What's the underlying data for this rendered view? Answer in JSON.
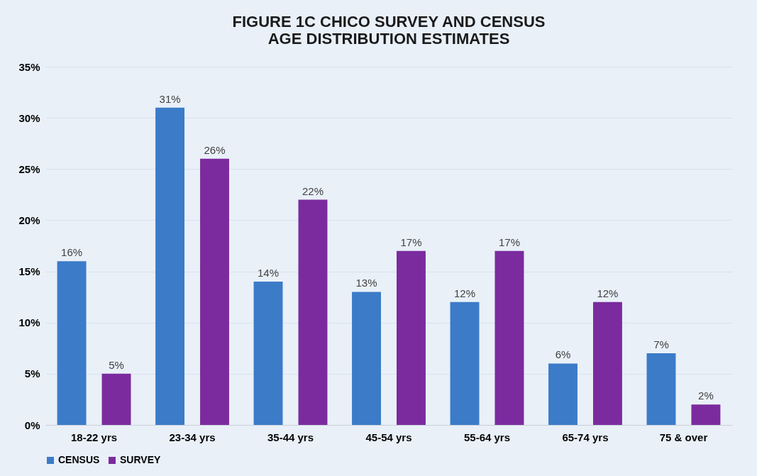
{
  "chart_data": {
    "type": "bar",
    "title": "FIGURE 1C  CHICO SURVEY AND CENSUS\nAGE DISTRIBUTION ESTIMATES",
    "categories": [
      "18-22 yrs",
      "23-34 yrs",
      "35-44 yrs",
      "45-54 yrs",
      "55-64 yrs",
      "65-74 yrs",
      "75 & over"
    ],
    "series": [
      {
        "name": "CENSUS",
        "color": "#3b7bc8",
        "values": [
          16,
          31,
          14,
          13,
          12,
          6,
          7
        ],
        "value_labels": [
          "16%",
          "31%",
          "14%",
          "13%",
          "12%",
          "6%",
          "7%"
        ]
      },
      {
        "name": "SURVEY",
        "color": "#7b2b9e",
        "values": [
          5,
          26,
          22,
          17,
          17,
          12,
          2
        ],
        "value_labels": [
          "5%",
          "26%",
          "22%",
          "17%",
          "17%",
          "12%",
          "2%"
        ]
      }
    ],
    "ylim": [
      0,
      35
    ],
    "yticks": [
      {
        "value": 0,
        "label": "0%"
      },
      {
        "value": 5,
        "label": "5%"
      },
      {
        "value": 10,
        "label": "10%"
      },
      {
        "value": 15,
        "label": "15%"
      },
      {
        "value": 20,
        "label": "20%"
      },
      {
        "value": 25,
        "label": "25%"
      },
      {
        "value": 30,
        "label": "30%"
      },
      {
        "value": 35,
        "label": "35%"
      }
    ],
    "grid": "y",
    "legend": "bottom"
  }
}
